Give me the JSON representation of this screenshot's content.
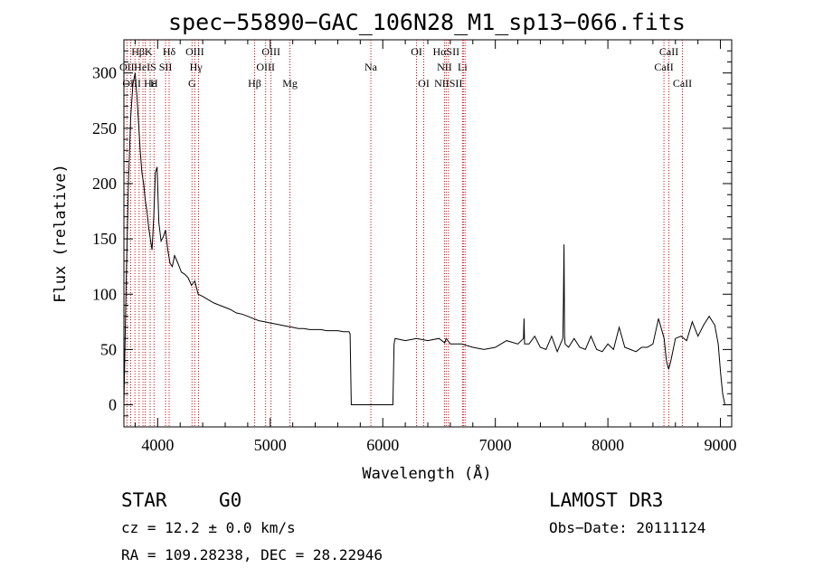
{
  "figure": {
    "title": "spec−55890−GAC_106N28_M1_sp13−066.fits",
    "object_class": "STAR",
    "subclass": "G0",
    "survey": "LAMOST DR3",
    "cz_line": "cz = 12.2 ± 0.0 km/s",
    "obs_date_line": "Obs−Date: 20111124",
    "coords_line": "RA = 109.28238, DEC =  28.22946"
  },
  "chart_data": {
    "type": "line",
    "title": "spec−55890−GAC_106N28_M1_sp13−066.fits",
    "xlabel": "Wavelength (Å)",
    "ylabel": "Flux (relative)",
    "xlim": [
      3700,
      9100
    ],
    "ylim": [
      -20,
      330
    ],
    "xticks": [
      4000,
      5000,
      6000,
      7000,
      8000,
      9000
    ],
    "yticks": [
      0,
      50,
      100,
      150,
      200,
      250,
      300
    ],
    "line_color": "#000000",
    "marker_color": "#cc0000",
    "series": [
      {
        "name": "flux",
        "x": [
          3700,
          3720,
          3740,
          3760,
          3780,
          3800,
          3815,
          3830,
          3845,
          3860,
          3875,
          3890,
          3905,
          3920,
          3935,
          3950,
          3965,
          3980,
          3995,
          4010,
          4030,
          4050,
          4070,
          4090,
          4110,
          4130,
          4150,
          4180,
          4210,
          4240,
          4270,
          4300,
          4330,
          4360,
          4400,
          4450,
          4500,
          4550,
          4600,
          4650,
          4700,
          4750,
          4800,
          4850,
          4900,
          4950,
          5000,
          5050,
          5100,
          5150,
          5200,
          5250,
          5300,
          5350,
          5400,
          5450,
          5500,
          5550,
          5600,
          5650,
          5700,
          5710,
          5720,
          5900,
          6090,
          6100,
          6110,
          6200,
          6300,
          6400,
          6500,
          6550,
          6563,
          6600,
          6700,
          6800,
          6900,
          7000,
          7100,
          7200,
          7250,
          7255,
          7260,
          7300,
          7350,
          7400,
          7450,
          7500,
          7550,
          7600,
          7605,
          7610,
          7615,
          7620,
          7650,
          7700,
          7750,
          7800,
          7850,
          7900,
          7950,
          8000,
          8050,
          8100,
          8150,
          8200,
          8250,
          8300,
          8350,
          8400,
          8450,
          8500,
          8520,
          8540,
          8560,
          8600,
          8650,
          8700,
          8750,
          8800,
          8850,
          8900,
          8950,
          8980,
          9000,
          9020,
          9040
        ],
        "y": [
          0,
          110,
          200,
          260,
          290,
          300,
          280,
          255,
          230,
          210,
          200,
          185,
          175,
          160,
          150,
          140,
          170,
          210,
          215,
          165,
          148,
          152,
          158,
          140,
          128,
          125,
          135,
          128,
          120,
          118,
          115,
          108,
          112,
          100,
          98,
          95,
          92,
          90,
          88,
          86,
          83,
          82,
          80,
          78,
          76,
          75,
          74,
          73,
          72,
          71,
          70,
          69,
          69,
          68,
          68,
          68,
          67,
          67,
          67,
          66,
          66,
          64,
          0,
          0,
          0,
          55,
          60,
          58,
          60,
          58,
          60,
          56,
          60,
          55,
          55,
          52,
          50,
          52,
          58,
          55,
          60,
          78,
          55,
          55,
          62,
          52,
          50,
          62,
          48,
          60,
          95,
          145,
          62,
          55,
          52,
          60,
          52,
          50,
          62,
          50,
          48,
          55,
          50,
          70,
          52,
          50,
          48,
          52,
          52,
          55,
          78,
          60,
          40,
          32,
          40,
          60,
          62,
          58,
          75,
          62,
          72,
          80,
          72,
          55,
          30,
          10,
          0
        ]
      }
    ],
    "line_markers": [
      {
        "label": "HβK",
        "x": 3860,
        "row": 1
      },
      {
        "label": "OII",
        "x": 3727,
        "row": 2
      },
      {
        "label": "OIII",
        "x": 3770,
        "row": 3
      },
      {
        "label": "HeIS",
        "x": 3889,
        "row": 2
      },
      {
        "label": "Hε",
        "x": 3933,
        "row": 3
      },
      {
        "label": "H",
        "x": 3968,
        "row": 3
      },
      {
        "label": "Hδ",
        "x": 4102,
        "row": 1
      },
      {
        "label": "SII",
        "x": 4070,
        "row": 2
      },
      {
        "label": "OIII",
        "x": 4330,
        "row": 1
      },
      {
        "label": "Hγ",
        "x": 4340,
        "row": 2
      },
      {
        "label": "G",
        "x": 4305,
        "row": 3
      },
      {
        "label": "OIII",
        "x": 5007,
        "row": 1
      },
      {
        "label": "OIII",
        "x": 4959,
        "row": 2
      },
      {
        "label": "Hβ",
        "x": 4861,
        "row": 3
      },
      {
        "label": "Mg",
        "x": 5175,
        "row": 3
      },
      {
        "label": "Na",
        "x": 5894,
        "row": 2
      },
      {
        "label": "OI",
        "x": 6300,
        "row": 1
      },
      {
        "label": "OI",
        "x": 6364,
        "row": 3
      },
      {
        "label": "HαSII",
        "x": 6563,
        "row": 1
      },
      {
        "label": "NII",
        "x": 6548,
        "row": 2
      },
      {
        "label": "Li",
        "x": 6708,
        "row": 2
      },
      {
        "label": "NIISII",
        "x": 6583,
        "row": 3
      },
      {
        "label": "CaII",
        "x": 8542,
        "row": 1
      },
      {
        "label": "CaII",
        "x": 8498,
        "row": 2
      },
      {
        "label": "CaII",
        "x": 8662,
        "row": 3
      }
    ],
    "marker_lines_x": [
      3727,
      3760,
      3798,
      3835,
      3869,
      3889,
      3933,
      3968,
      4070,
      4102,
      4305,
      4330,
      4363,
      4861,
      4959,
      5007,
      5175,
      5894,
      6300,
      6364,
      6548,
      6563,
      6583,
      6708,
      6716,
      6731,
      8498,
      8542,
      8662
    ]
  }
}
